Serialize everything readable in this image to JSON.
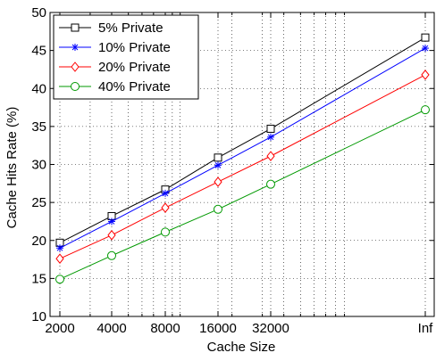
{
  "chart_data": {
    "type": "line",
    "title": "",
    "xlabel": "Cache Size",
    "ylabel": "Cache Hits Rate (%)",
    "categories": [
      "2000",
      "4000",
      "8000",
      "16000",
      "32000",
      "Inf"
    ],
    "x_axis_scale": "log (Inf plotted at right end of axis)",
    "ylim": [
      10,
      50
    ],
    "yticks": [
      10,
      15,
      20,
      25,
      30,
      35,
      40,
      45,
      50
    ],
    "grid": true,
    "legend_position": "top-left",
    "series": [
      {
        "name": "5% Private",
        "color": "#000000",
        "marker": "square",
        "values": [
          19.7,
          23.2,
          26.7,
          30.9,
          34.7,
          46.7
        ]
      },
      {
        "name": "10% Private",
        "color": "#0000ff",
        "marker": "asterisk",
        "values": [
          19.0,
          22.5,
          26.2,
          29.9,
          33.6,
          45.3
        ]
      },
      {
        "name": "20% Private",
        "color": "#ff0000",
        "marker": "diamond",
        "values": [
          17.6,
          20.7,
          24.3,
          27.7,
          31.1,
          41.8
        ]
      },
      {
        "name": "40% Private",
        "color": "#009900",
        "marker": "circle",
        "values": [
          14.9,
          18.0,
          21.1,
          24.1,
          27.4,
          37.2
        ]
      }
    ]
  }
}
